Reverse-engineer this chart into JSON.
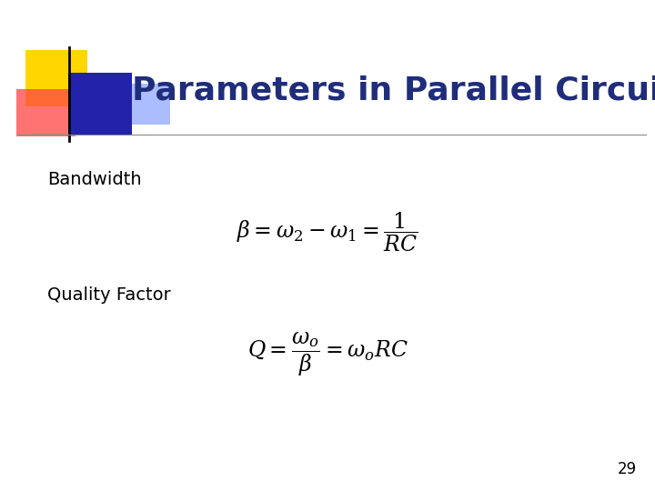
{
  "title": "Parameters in Parallel Circuit",
  "title_color": "#1f2d7b",
  "title_fontsize": 26,
  "background_color": "#ffffff",
  "bandwidth_label": "Bandwidth",
  "quality_label": "Quality Factor",
  "formula_fontsize": 17,
  "label_fontsize": 14,
  "page_number": "29",
  "page_number_fontsize": 12,
  "deco_yellow": "#FFD700",
  "deco_red": "#FF4444",
  "deco_blue_dark": "#2222AA",
  "deco_blue_light": "#6688FF",
  "label_color": "#000000"
}
